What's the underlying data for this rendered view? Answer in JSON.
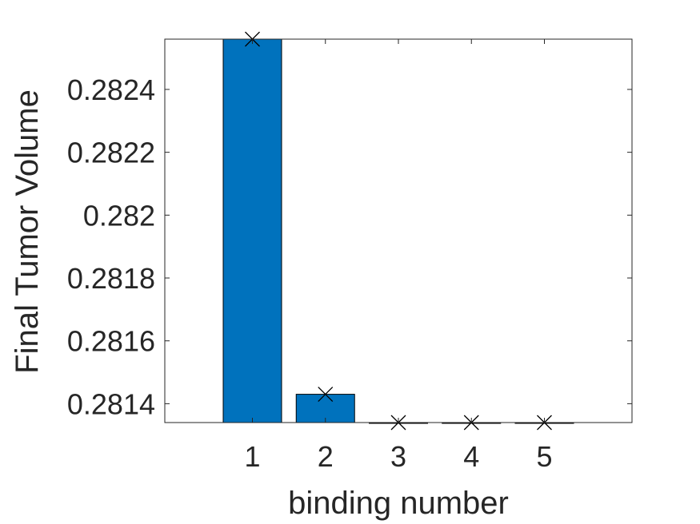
{
  "chart_data": {
    "type": "bar",
    "title": "",
    "xlabel": "binding number",
    "ylabel": "Final Tumor Volume",
    "categories": [
      "1",
      "2",
      "3",
      "4",
      "5"
    ],
    "values": [
      0.28256,
      0.28143,
      0.28134,
      0.28134,
      0.28134
    ],
    "ylim": [
      0.28134,
      0.28256
    ],
    "xlim": [
      -0.2,
      6.2
    ],
    "yticks": [
      0.2814,
      0.2816,
      0.2818,
      0.282,
      0.2822,
      0.2824
    ],
    "ytick_labels": [
      "0.2814",
      "0.2816",
      "0.2818",
      "0.282",
      "0.2822",
      "0.2824"
    ],
    "xtick_labels": [
      "1",
      "2",
      "3",
      "4",
      "5"
    ],
    "grid": false,
    "legend": "none",
    "colors": {
      "bar": "#0072BD",
      "marker": "#000000",
      "axis": "#262626"
    },
    "markers": "x"
  }
}
